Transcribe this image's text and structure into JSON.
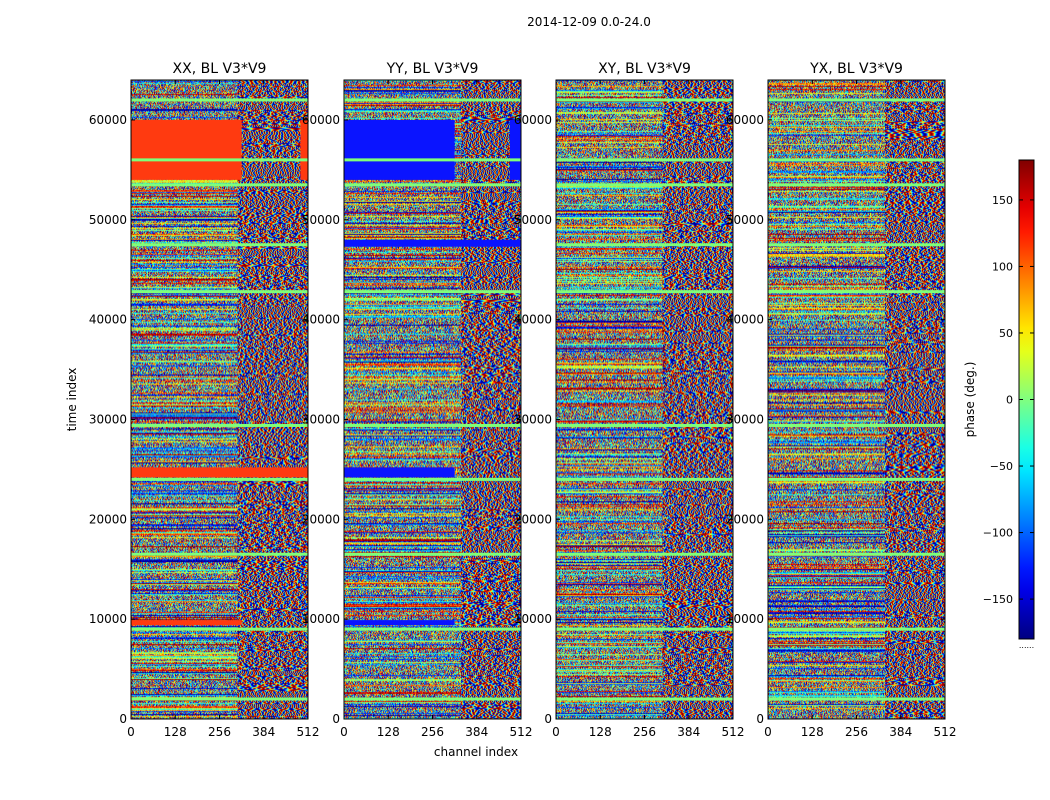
{
  "figure_title": "2014-12-09 0.0-24.0",
  "colors": {
    "rfi_red": "#ff3a10",
    "rfi_blue": "#0a14ff",
    "flag_green": "#7fff7a"
  },
  "chart_data": [
    {
      "type": "heatmap",
      "title": "XX, BL V3*V9",
      "xlabel": "",
      "ylabel": "time index",
      "xlim": [
        0,
        512
      ],
      "ylim": [
        0,
        64000
      ],
      "xticks": [
        0,
        128,
        256,
        384,
        512
      ],
      "yticks": [
        0,
        10000,
        20000,
        30000,
        40000,
        50000,
        60000
      ],
      "ytick_labels": [
        "0",
        "10000",
        "20000",
        "30000",
        "40000",
        "50000",
        "60000"
      ],
      "colorbar_label": "phase (deg.)",
      "saturated_bands": [
        {
          "t0": 54000,
          "t1": 60000,
          "c0": 0,
          "c1": 320,
          "color": "rfi_red"
        },
        {
          "t0": 54000,
          "t1": 60000,
          "c0": 490,
          "c1": 512,
          "color": "rfi_red"
        },
        {
          "t0": 24200,
          "t1": 25200,
          "c0": 0,
          "c1": 512,
          "color": "rfi_red"
        },
        {
          "t0": 9400,
          "t1": 9900,
          "c0": 0,
          "c1": 320,
          "color": "rfi_red"
        }
      ],
      "flag_rows": [
        2000,
        9000,
        16500,
        24000,
        29400,
        42800,
        47500,
        53500,
        56000,
        62000
      ]
    },
    {
      "type": "heatmap",
      "title": "YY, BL V3*V9",
      "xlabel": "channel index",
      "ylabel": "",
      "xlim": [
        0,
        512
      ],
      "ylim": [
        0,
        64000
      ],
      "xticks": [
        0,
        128,
        256,
        384,
        512
      ],
      "yticks": [
        0,
        10000,
        20000,
        30000,
        40000,
        50000,
        60000
      ],
      "ytick_labels": [
        "0",
        "10000",
        "20000",
        "30000",
        "40000",
        "50000",
        "60000"
      ],
      "saturated_bands": [
        {
          "t0": 54000,
          "t1": 60000,
          "c0": 0,
          "c1": 320,
          "color": "rfi_blue"
        },
        {
          "t0": 54000,
          "t1": 60000,
          "c0": 480,
          "c1": 512,
          "color": "rfi_blue"
        },
        {
          "t0": 47300,
          "t1": 48000,
          "c0": 0,
          "c1": 512,
          "color": "rfi_blue"
        },
        {
          "t0": 24200,
          "t1": 25200,
          "c0": 0,
          "c1": 320,
          "color": "rfi_blue"
        },
        {
          "t0": 9400,
          "t1": 9900,
          "c0": 0,
          "c1": 320,
          "color": "rfi_blue"
        }
      ],
      "flag_rows": [
        2000,
        9000,
        16500,
        24000,
        29400,
        42800,
        53500,
        56000,
        62000
      ]
    },
    {
      "type": "heatmap",
      "title": "XY, BL V3*V9",
      "xlabel": "",
      "ylabel": "",
      "xlim": [
        0,
        512
      ],
      "ylim": [
        0,
        64000
      ],
      "xticks": [
        0,
        128,
        256,
        384,
        512
      ],
      "yticks": [
        0,
        10000,
        20000,
        30000,
        40000,
        50000,
        60000
      ],
      "ytick_labels": [
        "0",
        "10000",
        "20000",
        "30000",
        "40000",
        "50000",
        "60000"
      ],
      "saturated_bands": [],
      "flag_rows": [
        2000,
        9000,
        16500,
        24000,
        29400,
        42800,
        47500,
        53500,
        56000,
        62000
      ]
    },
    {
      "type": "heatmap",
      "title": "YX, BL V3*V9",
      "xlabel": "",
      "ylabel": "",
      "xlim": [
        0,
        512
      ],
      "ylim": [
        0,
        64000
      ],
      "xticks": [
        0,
        128,
        256,
        384,
        512
      ],
      "yticks": [
        0,
        10000,
        20000,
        30000,
        40000,
        50000,
        60000
      ],
      "ytick_labels": [
        "0",
        "10000",
        "20000",
        "30000",
        "40000",
        "50000",
        "60000"
      ],
      "saturated_bands": [],
      "flag_rows": [
        2000,
        9000,
        16500,
        24000,
        29400,
        42800,
        47500,
        53500,
        56000,
        62000
      ]
    }
  ],
  "colorbar": {
    "label": "phase (deg.)",
    "vmin": -180,
    "vmax": 180,
    "ticks": [
      150,
      100,
      50,
      0,
      -50,
      -100,
      -150
    ],
    "tick_labels": [
      "150",
      "100",
      "50",
      "0",
      "−50",
      "−100",
      "−150"
    ],
    "colormap": "jet",
    "footer": "......"
  }
}
